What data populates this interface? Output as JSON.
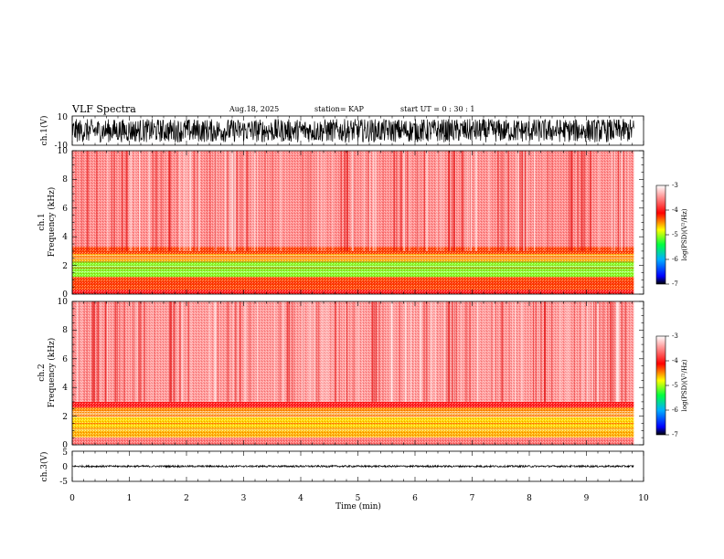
{
  "header": {
    "title": "VLF Spectra",
    "date": "Aug.18, 2025",
    "station": "station= KAP",
    "start": "start  UT =   0  : 30 : 1"
  },
  "chart_data": {
    "type": "heatmap",
    "x_axis": {
      "label": "Time  (min)",
      "range": [
        0,
        10
      ],
      "ticks": [
        "0",
        "1",
        "2",
        "3",
        "4",
        "5",
        "6",
        "7",
        "8",
        "9",
        "10"
      ],
      "data_end": 9.83
    },
    "waveform_top": {
      "label": "ch.1(V)",
      "range": [
        -10,
        10
      ],
      "ticks": [
        "10",
        "-10"
      ],
      "amplitude_band": [
        -8,
        8
      ]
    },
    "spectrogram_ch1": {
      "label_line1": "ch.1",
      "label_line2": "Frequency  (kHz)",
      "range": [
        0,
        10
      ],
      "ticks": [
        "0",
        "2",
        "4",
        "6",
        "8",
        "10"
      ],
      "bands": [
        {
          "from": 0.0,
          "to": 0.3,
          "level": -4.0
        },
        {
          "from": 0.3,
          "to": 1.2,
          "level": -4.3
        },
        {
          "from": 1.2,
          "to": 2.3,
          "level": -5.1
        },
        {
          "from": 2.3,
          "to": 2.8,
          "level": -4.6
        },
        {
          "from": 2.8,
          "to": 3.3,
          "level": -4.3
        },
        {
          "from": 3.3,
          "to": 10.0,
          "level": -3.5
        }
      ]
    },
    "spectrogram_ch2": {
      "label_line1": "ch.2",
      "label_line2": "Frequency  (kHz)",
      "range": [
        0,
        10
      ],
      "ticks": [
        "0",
        "2",
        "4",
        "6",
        "8",
        "10"
      ],
      "bands": [
        {
          "from": 0.0,
          "to": 0.5,
          "level": -3.6
        },
        {
          "from": 0.5,
          "to": 1.0,
          "level": -4.6
        },
        {
          "from": 1.0,
          "to": 2.0,
          "level": -4.7
        },
        {
          "from": 2.0,
          "to": 2.6,
          "level": -4.5
        },
        {
          "from": 2.6,
          "to": 3.0,
          "level": -4.0
        },
        {
          "from": 3.0,
          "to": 10.0,
          "level": -3.45
        }
      ]
    },
    "waveform_bottom": {
      "label": "ch.3(V)",
      "range": [
        -5,
        5
      ],
      "ticks": [
        "5",
        "0",
        "-5"
      ],
      "amplitude_band": [
        -0.3,
        0.3
      ]
    },
    "colorbar": {
      "label": "log(PSD)(V²/Hz)",
      "range": [
        -7,
        -3
      ],
      "ticks": [
        "-3",
        "-4",
        "-5",
        "-6",
        "-7"
      ]
    }
  }
}
